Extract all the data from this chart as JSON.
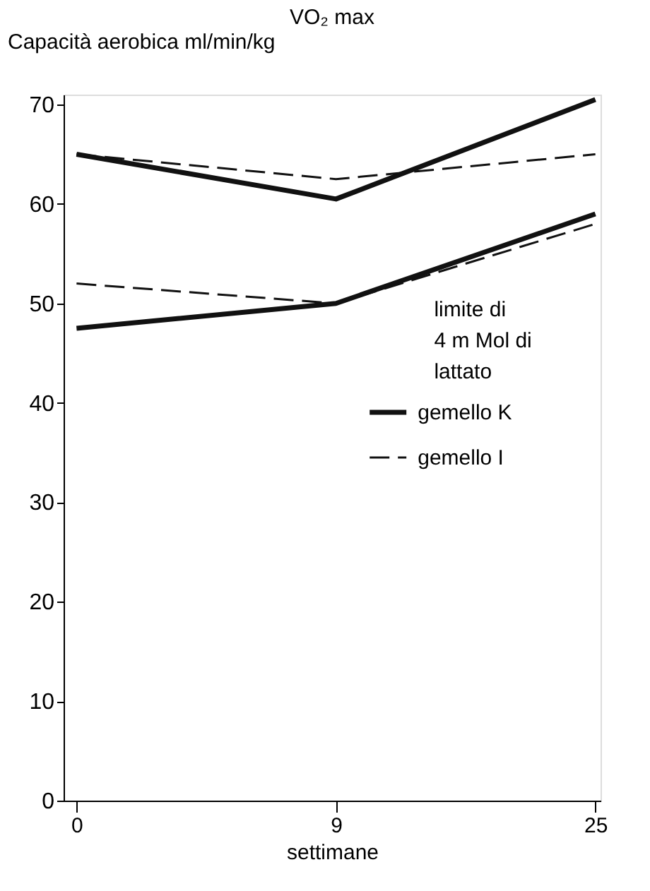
{
  "chart_data": {
    "type": "line",
    "title": "VO₂ max",
    "xlabel": "settimane",
    "ylabel": "Capacità aerobica ml/min/kg",
    "categories": [
      "0",
      "9",
      "25"
    ],
    "series": [
      {
        "name": "gemello K",
        "color": "#111111",
        "line_style": "solid",
        "values": [
          65,
          60.5,
          70.5
        ]
      },
      {
        "name": "gemello I",
        "color": "#111111",
        "line_style": "dashed",
        "values": [
          65,
          62.5,
          65
        ]
      },
      {
        "color": "#111111",
        "line_style": "solid",
        "values": [
          47.5,
          50,
          59
        ]
      },
      {
        "color": "#111111",
        "line_style": "dashed",
        "values": [
          52,
          50,
          58
        ]
      }
    ],
    "annotations": [
      "limite di 4 m Mol di lattato"
    ],
    "ylim": [
      0,
      71
    ],
    "yticks": [
      0,
      10,
      20,
      30,
      40,
      50,
      60,
      70
    ],
    "legend": "right",
    "grid": false,
    "marker": "none"
  }
}
